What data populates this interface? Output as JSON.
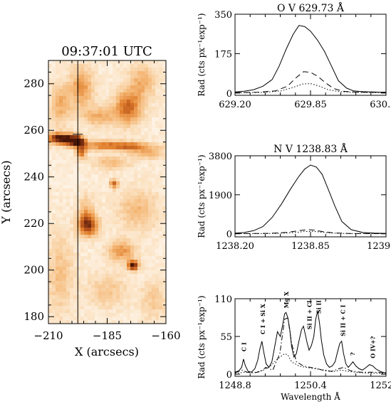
{
  "chart_data": [
    {
      "type": "heatmap",
      "title": "09:37:01 UTC",
      "xlabel": "X (arcsecs)",
      "ylabel": "Y (arcsecs)",
      "xlim": [
        -210,
        -160
      ],
      "ylim": [
        177,
        290
      ],
      "xticks": [
        "−210",
        "−185",
        "−160"
      ],
      "xtick_values": [
        -210,
        -185,
        -160
      ],
      "yticks": [
        "180",
        "200",
        "220",
        "240",
        "260",
        "280"
      ],
      "ytick_values": [
        180,
        200,
        220,
        240,
        260,
        280
      ],
      "colormap": [
        "#ffffff",
        "#fbe1c0",
        "#f5b877",
        "#e07e2c",
        "#a9481a",
        "#4a1608"
      ],
      "slit_x": -197.5,
      "crosshair": {
        "x": -197.5,
        "y": 258.3
      },
      "features": [
        {
          "x": -205,
          "y": 256.5,
          "intensity": 0.9,
          "sx": 4,
          "sy": 1.6
        },
        {
          "x": -198.5,
          "y": 255.5,
          "intensity": 1.0,
          "sx": 2.6,
          "sy": 1.4
        },
        {
          "x": -196,
          "y": 251,
          "intensity": 0.55,
          "sx": 1.5,
          "sy": 2.2
        },
        {
          "x": -186,
          "y": 253.5,
          "intensity": 0.45,
          "sx": 9,
          "sy": 1.4
        },
        {
          "x": -174,
          "y": 253,
          "intensity": 0.35,
          "sx": 7,
          "sy": 1.2
        },
        {
          "x": -168,
          "y": 250,
          "intensity": 0.3,
          "sx": 5,
          "sy": 1.5
        },
        {
          "x": -196,
          "y": 278,
          "intensity": 0.4,
          "sx": 3.5,
          "sy": 6
        },
        {
          "x": -176,
          "y": 270,
          "intensity": 0.55,
          "sx": 4,
          "sy": 5
        },
        {
          "x": -170,
          "y": 281,
          "intensity": 0.3,
          "sx": 4,
          "sy": 5
        },
        {
          "x": -188,
          "y": 266,
          "intensity": 0.3,
          "sx": 5,
          "sy": 3
        },
        {
          "x": -205,
          "y": 271,
          "intensity": 0.3,
          "sx": 3,
          "sy": 6
        },
        {
          "x": -193,
          "y": 219,
          "intensity": 0.65,
          "sx": 3,
          "sy": 3
        },
        {
          "x": -194,
          "y": 224,
          "intensity": 0.3,
          "sx": 2.5,
          "sy": 5
        },
        {
          "x": -174,
          "y": 202,
          "intensity": 0.9,
          "sx": 1.6,
          "sy": 1.5
        },
        {
          "x": -179,
          "y": 208,
          "intensity": 0.4,
          "sx": 4,
          "sy": 3
        },
        {
          "x": -182,
          "y": 237,
          "intensity": 0.55,
          "sx": 1.3,
          "sy": 1.3
        },
        {
          "x": -172,
          "y": 226,
          "intensity": 0.25,
          "sx": 6,
          "sy": 6
        },
        {
          "x": -205,
          "y": 198,
          "intensity": 0.22,
          "sx": 4,
          "sy": 12
        },
        {
          "x": -185,
          "y": 191,
          "intensity": 0.2,
          "sx": 6,
          "sy": 5
        },
        {
          "x": -165,
          "y": 187,
          "intensity": 0.18,
          "sx": 4,
          "sy": 6
        },
        {
          "x": -183,
          "y": 246,
          "intensity": 0.28,
          "sx": 5,
          "sy": 2
        }
      ]
    },
    {
      "type": "line",
      "title": "O V 629.73 Å",
      "ylabel": "Rad (cts px⁻¹exp⁻¹)",
      "xlim": [
        629.2,
        630.5
      ],
      "ylim": [
        -10,
        350
      ],
      "xticks": [
        "629.20",
        "629.85",
        "630.50"
      ],
      "xtick_values": [
        629.2,
        629.85,
        630.5
      ],
      "yticks": [
        "0",
        "175",
        "350"
      ],
      "ytick_values": [
        0,
        175,
        350
      ],
      "series": [
        {
          "style": "solid",
          "x": [
            629.2,
            629.28,
            629.36,
            629.44,
            629.52,
            629.58,
            629.64,
            629.7,
            629.75,
            629.8,
            629.85,
            629.91,
            629.97,
            630.03,
            630.09,
            630.16,
            630.22,
            630.3,
            630.38,
            630.44,
            630.5
          ],
          "values": [
            5,
            8,
            15,
            30,
            60,
            120,
            195,
            260,
            300,
            295,
            275,
            235,
            185,
            120,
            55,
            22,
            10,
            6,
            5,
            4,
            4
          ]
        },
        {
          "style": "dashed",
          "x": [
            629.2,
            629.4,
            629.55,
            629.65,
            629.73,
            629.79,
            629.85,
            629.91,
            629.98,
            630.05,
            630.13,
            630.25,
            630.5
          ],
          "values": [
            2,
            4,
            10,
            30,
            70,
            95,
            92,
            75,
            45,
            20,
            8,
            4,
            3
          ]
        },
        {
          "style": "dotted",
          "x": [
            629.2,
            629.45,
            629.6,
            629.7,
            629.78,
            629.85,
            629.93,
            630.0,
            630.1,
            630.25,
            630.5
          ],
          "values": [
            1,
            3,
            10,
            25,
            40,
            42,
            30,
            15,
            6,
            3,
            2
          ]
        }
      ]
    },
    {
      "type": "line",
      "title": "N V 1238.83 Å",
      "ylabel": "Rad (cts px⁻¹exp⁻¹)",
      "xlim": [
        1238.2,
        1239.5
      ],
      "ylim": [
        -150,
        3800
      ],
      "xticks": [
        "1238.20",
        "1238.85",
        "1239.50"
      ],
      "xtick_values": [
        1238.2,
        1238.85,
        1239.5
      ],
      "yticks": [
        "0",
        "1900",
        "3800"
      ],
      "ytick_values": [
        0,
        1900,
        3800
      ],
      "series": [
        {
          "style": "solid",
          "x": [
            1238.2,
            1238.28,
            1238.36,
            1238.44,
            1238.52,
            1238.6,
            1238.68,
            1238.75,
            1238.8,
            1238.85,
            1238.9,
            1238.95,
            1239.0,
            1239.06,
            1239.12,
            1239.2,
            1239.3,
            1239.4,
            1239.5
          ],
          "values": [
            30,
            60,
            150,
            350,
            800,
            1450,
            2200,
            2800,
            3150,
            3350,
            3250,
            2900,
            2200,
            1350,
            600,
            200,
            60,
            30,
            20
          ]
        },
        {
          "style": "dashed",
          "x": [
            1238.2,
            1238.5,
            1238.65,
            1238.75,
            1238.82,
            1238.88,
            1238.95,
            1239.05,
            1239.2,
            1239.5
          ],
          "values": [
            5,
            20,
            70,
            150,
            200,
            180,
            110,
            40,
            10,
            5
          ]
        },
        {
          "style": "dotted",
          "x": [
            1238.2,
            1238.55,
            1238.7,
            1238.8,
            1238.88,
            1238.97,
            1239.1,
            1239.5
          ],
          "values": [
            3,
            15,
            55,
            110,
            115,
            60,
            15,
            3
          ]
        }
      ]
    },
    {
      "type": "line",
      "ylabel": "Rad (cts px⁻¹exp⁻¹)",
      "xlabel": "Wavelength Å",
      "xlim": [
        1248.8,
        1252.0
      ],
      "ylim": [
        -3,
        110
      ],
      "xticks": [
        "1248.8",
        "1250.4",
        "1252.0"
      ],
      "xtick_values": [
        1248.8,
        1250.4,
        1252.0
      ],
      "yticks": [
        "0",
        "55",
        "110"
      ],
      "ytick_values": [
        0,
        55,
        110
      ],
      "annotations": [
        {
          "text": "C I",
          "x": 1248.99,
          "y": 30
        },
        {
          "text": "C I + Si X",
          "x": 1249.39,
          "y": 55
        },
        {
          "text": "Mg X",
          "x": 1249.89,
          "y": 93
        },
        {
          "text": "Si II + Cl",
          "x": 1250.38,
          "y": 62
        },
        {
          "text": "Si II",
          "x": 1250.57,
          "y": 85
        },
        {
          "text": "Si II + C I",
          "x": 1251.09,
          "y": 52
        },
        {
          "text": "?",
          "x": 1251.29,
          "y": 24
        },
        {
          "text": "O IV+?",
          "x": 1251.72,
          "y": 20
        }
      ],
      "series": [
        {
          "style": "solid",
          "x": [
            1248.8,
            1248.88,
            1248.94,
            1248.98,
            1249.02,
            1249.08,
            1249.15,
            1249.22,
            1249.28,
            1249.33,
            1249.37,
            1249.41,
            1249.46,
            1249.52,
            1249.58,
            1249.64,
            1249.7,
            1249.76,
            1249.81,
            1249.85,
            1249.88,
            1249.92,
            1249.96,
            1250.0,
            1250.05,
            1250.1,
            1250.16,
            1250.21,
            1250.25,
            1250.29,
            1250.33,
            1250.37,
            1250.42,
            1250.47,
            1250.51,
            1250.55,
            1250.59,
            1250.63,
            1250.68,
            1250.74,
            1250.8,
            1250.86,
            1250.92,
            1250.97,
            1251.02,
            1251.06,
            1251.1,
            1251.15,
            1251.2,
            1251.25,
            1251.3,
            1251.36,
            1251.43,
            1251.5,
            1251.58,
            1251.65,
            1251.72,
            1251.78,
            1251.85,
            1251.92,
            1252.0
          ],
          "values": [
            3,
            5,
            10,
            22,
            12,
            4,
            3,
            8,
            20,
            38,
            48,
            32,
            15,
            10,
            18,
            40,
            62,
            55,
            72,
            88,
            90,
            82,
            65,
            40,
            25,
            30,
            50,
            65,
            70,
            58,
            45,
            35,
            42,
            55,
            80,
            92,
            75,
            50,
            28,
            15,
            10,
            12,
            18,
            32,
            45,
            48,
            30,
            15,
            10,
            14,
            18,
            12,
            8,
            6,
            10,
            14,
            12,
            8,
            5,
            3,
            2
          ]
        },
        {
          "style": "dashdot",
          "x": [
            1248.8,
            1248.95,
            1249.05,
            1249.2,
            1249.35,
            1249.45,
            1249.6,
            1249.75,
            1249.85,
            1249.92,
            1250.0,
            1250.1,
            1250.25,
            1250.4,
            1250.55,
            1250.7,
            1250.85,
            1251.0,
            1251.1,
            1251.25,
            1251.45,
            1251.7,
            1252.0
          ],
          "values": [
            2,
            6,
            3,
            2,
            4,
            10,
            6,
            30,
            80,
            82,
            45,
            18,
            12,
            10,
            8,
            5,
            4,
            8,
            10,
            5,
            3,
            3,
            2
          ]
        },
        {
          "style": "dotted",
          "x": [
            1248.8,
            1249.0,
            1249.2,
            1249.4,
            1249.55,
            1249.7,
            1249.85,
            1249.92,
            1250.0,
            1250.15,
            1250.3,
            1250.5,
            1250.7,
            1250.9,
            1251.05,
            1251.2,
            1251.5,
            1252.0
          ],
          "values": [
            1,
            3,
            2,
            6,
            12,
            22,
            30,
            28,
            18,
            12,
            10,
            8,
            6,
            4,
            6,
            4,
            2,
            1
          ]
        }
      ]
    }
  ]
}
